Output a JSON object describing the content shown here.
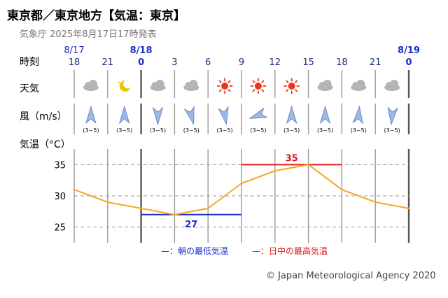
{
  "header": {
    "title": "東京都／東京地方【気温：東京】",
    "subtitle": "気象庁 2025年8月17日17時発表"
  },
  "row_labels": {
    "time": "時刻",
    "weather": "天気",
    "wind": "風（m/s）",
    "temp": "気温（°C）"
  },
  "date_labels": [
    "8/17",
    "8/18",
    "8/19"
  ],
  "hours": [
    "18",
    "21",
    "0",
    "3",
    "6",
    "9",
    "12",
    "15",
    "18",
    "21",
    "0"
  ],
  "bold_hours": [
    false,
    false,
    true,
    false,
    false,
    false,
    false,
    false,
    false,
    false,
    true
  ],
  "weather": [
    "cloud-icon",
    "moon-icon",
    "cloud-icon",
    "cloud-icon",
    "sun-icon",
    "sun-icon",
    "sun-icon",
    "cloud-icon",
    "cloud-icon",
    "cloud-icon"
  ],
  "wind": {
    "speed_label": "(3~5)",
    "directions_deg": [
      0,
      0,
      180,
      165,
      170,
      250,
      0,
      0,
      5,
      185
    ]
  },
  "legend": {
    "min_label": "—：朝の最低気温",
    "max_label": "—：日中の最高気温"
  },
  "colors": {
    "line": "#f5a623",
    "min": "#1a2dcc",
    "max": "#e01a1a",
    "date": "#1a2dcc",
    "sun": "#e8361a",
    "moon": "#f2c400",
    "cloud": "#b4b4b4",
    "wind_arrow": "#9db8e6"
  },
  "chart_data": {
    "type": "line",
    "x": [
      "18",
      "21",
      "0",
      "3",
      "6",
      "9",
      "12",
      "15",
      "18",
      "21",
      "0"
    ],
    "series": [
      {
        "values": [
          31,
          29,
          28,
          27,
          28,
          32,
          34,
          35,
          31,
          29,
          28
        ]
      }
    ],
    "ylabel": "気温（°C）",
    "yticks": [
      25,
      30,
      35
    ],
    "ylim": [
      22.5,
      37.5
    ],
    "min_temp": {
      "value": 27,
      "label": "27",
      "from": "0",
      "to": "9"
    },
    "max_temp": {
      "value": 35,
      "label": "35",
      "from": "9",
      "to": "18"
    },
    "grid": true
  },
  "copyright": "© Japan Meteorological Agency 2020"
}
